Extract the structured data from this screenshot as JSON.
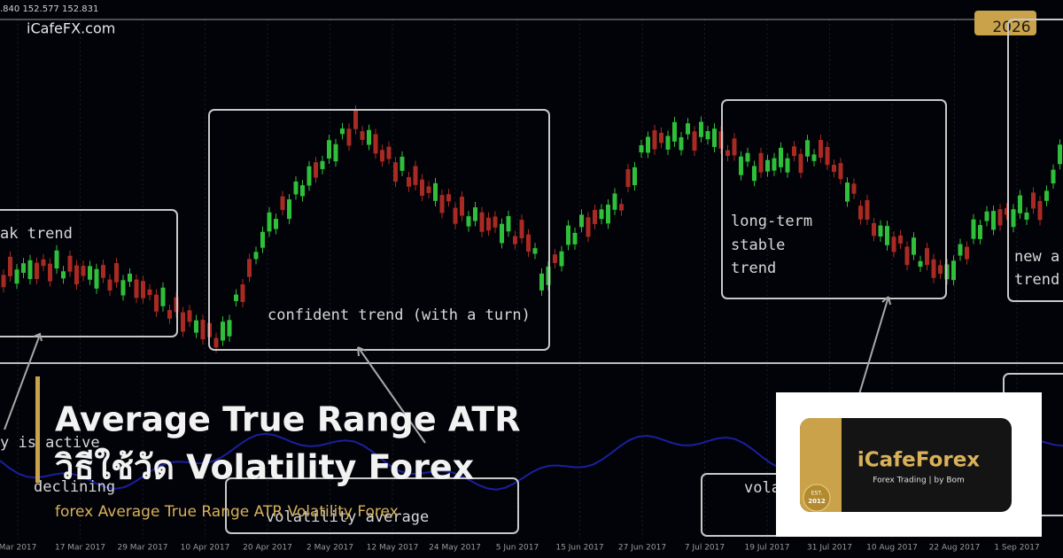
{
  "header": {
    "price_readout": ".840 152.577 152.831",
    "site": "iCafeFX.com",
    "year": "2026"
  },
  "annotations": {
    "weak_trend": "ak trend",
    "confident_trend": "confident trend (with a turn)",
    "long_term": [
      "long-term",
      "stable",
      "trend"
    ],
    "new_trend": [
      "new a",
      "trend"
    ],
    "activity": "y is active",
    "declining": "declining",
    "volatility_average": "volatility average",
    "vola": "vola"
  },
  "date_axis": [
    "Mar 2017",
    "17 Mar 2017",
    "29 Mar 2017",
    "10 Apr 2017",
    "20 Apr 2017",
    "2 May 2017",
    "12 May 2017",
    "24 May 2017",
    "5 Jun 2017",
    "15 Jun 2017",
    "27 Jun 2017",
    "7 Jul 2017",
    "19 Jul 2017",
    "31 Jul 2017",
    "10 Aug 2017",
    "22 Aug 2017",
    "1 Sep 2017"
  ],
  "headline": {
    "line1": "Average True Range ATR",
    "line2": "วิธีใช้วัด Volatility Forex",
    "subtitle": "forex Average True Range ATR Volatility Forex"
  },
  "logo": {
    "name": "iCafeForex",
    "tagline": "Forex Trading | by Bom",
    "badge": [
      "EST.",
      "2012"
    ]
  }
}
